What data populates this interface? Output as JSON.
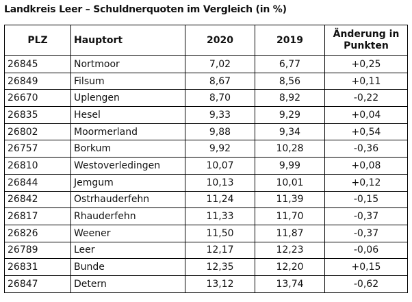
{
  "title": "Landkreis Leer – Schuldnerquoten im Vergleich (in %)",
  "headers": {
    "plz": "PLZ",
    "hauptort": "Hauptort",
    "y2020": "2020",
    "y2019": "2019",
    "change": "Änderung in Punkten"
  },
  "rows": [
    {
      "plz": "26845",
      "ort": "Nortmoor",
      "y2020": "7,02",
      "y2019": "6,77",
      "change": "+0,25"
    },
    {
      "plz": "26849",
      "ort": "Filsum",
      "y2020": "8,67",
      "y2019": "8,56",
      "change": "+0,11"
    },
    {
      "plz": "26670",
      "ort": "Uplengen",
      "y2020": "8,70",
      "y2019": "8,92",
      "change": "-0,22"
    },
    {
      "plz": "26835",
      "ort": "Hesel",
      "y2020": "9,33",
      "y2019": "9,29",
      "change": "+0,04"
    },
    {
      "plz": "26802",
      "ort": "Moormerland",
      "y2020": "9,88",
      "y2019": "9,34",
      "change": "+0,54"
    },
    {
      "plz": "26757",
      "ort": "Borkum",
      "y2020": "9,92",
      "y2019": "10,28",
      "change": "-0,36"
    },
    {
      "plz": "26810",
      "ort": "Westoverledingen",
      "y2020": "10,07",
      "y2019": "9,99",
      "change": "+0,08"
    },
    {
      "plz": "26844",
      "ort": "Jemgum",
      "y2020": "10,13",
      "y2019": "10,01",
      "change": "+0,12"
    },
    {
      "plz": "26842",
      "ort": "Ostrhauderfehn",
      "y2020": "11,24",
      "y2019": "11,39",
      "change": "-0,15"
    },
    {
      "plz": "26817",
      "ort": "Rhauderfehn",
      "y2020": "11,33",
      "y2019": "11,70",
      "change": "-0,37"
    },
    {
      "plz": "26826",
      "ort": "Weener",
      "y2020": "11,50",
      "y2019": "11,87",
      "change": "-0,37"
    },
    {
      "plz": "26789",
      "ort": "Leer",
      "y2020": "12,17",
      "y2019": "12,23",
      "change": "-0,06"
    },
    {
      "plz": "26831",
      "ort": "Bunde",
      "y2020": "12,35",
      "y2019": "12,20",
      "change": "+0,15"
    },
    {
      "plz": "26847",
      "ort": "Detern",
      "y2020": "13,12",
      "y2019": "13,74",
      "change": "-0,62"
    }
  ]
}
